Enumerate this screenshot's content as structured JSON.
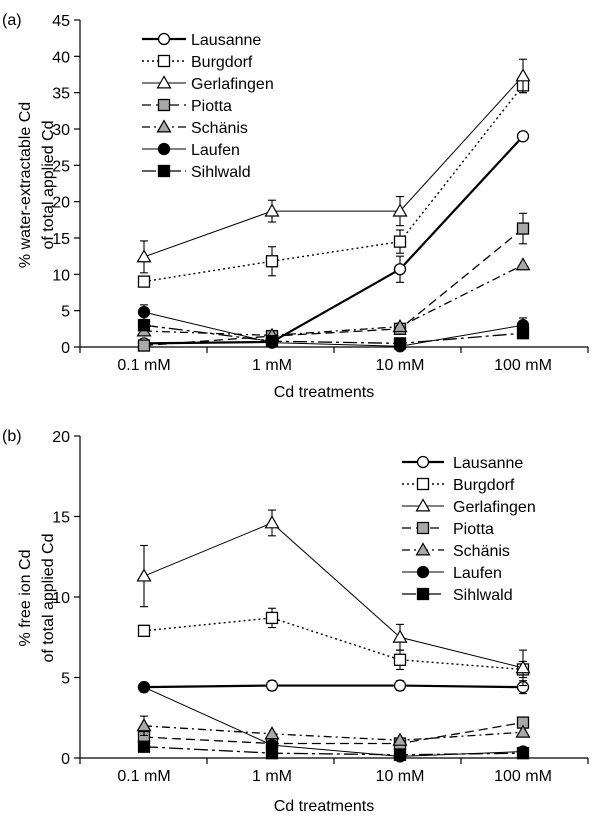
{
  "chart_data": [
    {
      "type": "line",
      "panel": "(a)",
      "xlabel": "Cd treatments",
      "ylabel_lines": [
        "% water-extractable Cd",
        "of total applied Cd"
      ],
      "ylim": [
        0,
        45
      ],
      "yticks": [
        0,
        5,
        10,
        15,
        20,
        25,
        30,
        35,
        40,
        45
      ],
      "categories": [
        "0.1 mM",
        "1 mM",
        "10 mM",
        "100 mM"
      ],
      "legend_position": "top-left",
      "series": [
        {
          "name": "Lausanne",
          "marker": "circle-open",
          "line": "solid-thick",
          "values": [
            0.5,
            0.7,
            10.7,
            29.0
          ],
          "errors": [
            0,
            0,
            1.8,
            0
          ]
        },
        {
          "name": "Burgdorf",
          "marker": "square-open",
          "line": "dotted",
          "values": [
            9.0,
            11.8,
            14.5,
            36.0
          ],
          "errors": [
            0.7,
            2.0,
            1.6,
            1.0
          ]
        },
        {
          "name": "Gerlafingen",
          "marker": "triangle-open",
          "line": "solid-thin",
          "values": [
            12.4,
            18.7,
            18.7,
            37.3
          ],
          "errors": [
            2.2,
            1.5,
            2.0,
            2.3
          ]
        },
        {
          "name": "Piotta",
          "marker": "square-gray",
          "line": "dashed",
          "values": [
            0.2,
            1.5,
            2.5,
            16.3
          ],
          "errors": [
            0,
            0,
            0,
            2.1
          ]
        },
        {
          "name": "Schänis",
          "marker": "triangle-gray",
          "line": "dash-dot",
          "values": [
            2.2,
            1.6,
            2.8,
            11.3
          ],
          "errors": [
            0,
            0,
            0,
            0
          ]
        },
        {
          "name": "Laufen",
          "marker": "circle-filled",
          "line": "solid-thin",
          "values": [
            4.8,
            0.6,
            0.1,
            3.0
          ],
          "errors": [
            1.0,
            0,
            0,
            1.0
          ]
        },
        {
          "name": "Sihlwald",
          "marker": "square-filled",
          "line": "long-dash-dot",
          "values": [
            3.0,
            0.8,
            0.5,
            1.9
          ],
          "errors": [
            0,
            0,
            0,
            0
          ]
        }
      ]
    },
    {
      "type": "line",
      "panel": "(b)",
      "xlabel": "Cd treatments",
      "ylabel_lines": [
        "% free ion Cd",
        "of total applied Cd"
      ],
      "ylim": [
        0,
        20
      ],
      "yticks": [
        0,
        5,
        10,
        15,
        20
      ],
      "categories": [
        "0.1 mM",
        "1 mM",
        "10 mM",
        "100 mM"
      ],
      "legend_position": "top-right",
      "series": [
        {
          "name": "Lausanne",
          "marker": "circle-open",
          "line": "solid-thick",
          "values": [
            4.4,
            4.5,
            4.5,
            4.4
          ],
          "errors": [
            0.3,
            0.3,
            0.3,
            0.4
          ]
        },
        {
          "name": "Burgdorf",
          "marker": "square-open",
          "line": "dotted",
          "values": [
            7.9,
            8.7,
            6.1,
            5.5
          ],
          "errors": [
            0.3,
            0.6,
            0.6,
            0.5
          ]
        },
        {
          "name": "Gerlafingen",
          "marker": "triangle-open",
          "line": "solid-thin",
          "values": [
            11.3,
            14.6,
            7.5,
            5.6
          ],
          "errors": [
            1.9,
            0.8,
            0.8,
            1.1
          ]
        },
        {
          "name": "Piotta",
          "marker": "square-gray",
          "line": "dashed",
          "values": [
            1.3,
            0.9,
            0.9,
            2.2
          ],
          "errors": [
            0,
            0,
            0,
            0
          ]
        },
        {
          "name": "Schänis",
          "marker": "triangle-gray",
          "line": "dash-dot",
          "values": [
            2.0,
            1.5,
            1.1,
            1.6
          ],
          "errors": [
            0.6,
            0,
            0,
            0
          ]
        },
        {
          "name": "Laufen",
          "marker": "circle-filled",
          "line": "solid-thin",
          "values": [
            4.4,
            0.8,
            0.1,
            0.4
          ],
          "errors": [
            0,
            0,
            0,
            0
          ]
        },
        {
          "name": "Sihlwald",
          "marker": "square-filled",
          "line": "long-dash-dot",
          "values": [
            0.7,
            0.3,
            0.2,
            0.3
          ],
          "errors": [
            0,
            0,
            0,
            0
          ]
        }
      ]
    }
  ]
}
